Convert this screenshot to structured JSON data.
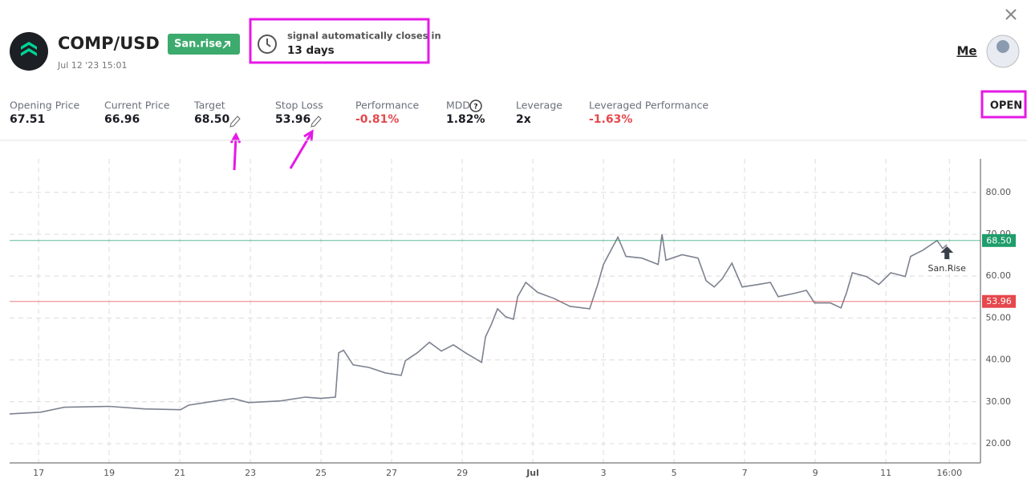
{
  "header": {
    "symbol": "COMP/USD",
    "badge": "San.rise",
    "date": "Jul 12 '23 15:01",
    "signal_label": "signal automatically closes in",
    "signal_value": "13 days",
    "user": "Me"
  },
  "stats": [
    {
      "label": "Opening Price",
      "value": "67.51"
    },
    {
      "label": "Current Price",
      "value": "66.96"
    },
    {
      "label": "Target",
      "value": "68.50"
    },
    {
      "label": "Stop Loss",
      "value": "53.96"
    },
    {
      "label": "Performance",
      "value": "-0.81%"
    },
    {
      "label": "MDD",
      "value": "1.82%"
    },
    {
      "label": "Leverage",
      "value": "2x"
    },
    {
      "label": "Leveraged Performance",
      "value": "-1.63%"
    }
  ],
  "status": "OPEN",
  "chart_data": {
    "type": "line",
    "color": "#7d8290",
    "grid": true,
    "x": [
      16.18,
      17.05,
      17.73,
      19.0,
      20.0,
      21.02,
      21.25,
      22.5,
      22.95,
      23.86,
      24.55,
      25.0,
      25.41,
      25.5,
      25.64,
      25.91,
      26.36,
      26.82,
      27.27,
      27.39,
      27.73,
      28.07,
      28.41,
      28.75,
      29.09,
      29.55,
      29.66,
      29.82,
      30.0,
      30.23,
      30.45,
      30.57,
      30.8,
      31.14,
      31.59,
      32.05,
      32.61,
      32.84,
      33.0,
      33.41,
      33.64,
      34.09,
      34.55,
      34.66,
      34.77,
      35.23,
      35.68,
      35.91,
      36.14,
      36.36,
      36.64,
      36.93,
      37.39,
      37.73,
      37.95,
      38.41,
      38.75,
      38.98,
      39.43,
      39.73,
      39.89,
      40.05,
      40.45,
      40.8,
      41.14,
      41.55,
      41.7,
      42.05,
      42.45,
      42.61,
      42.73
    ],
    "values": [
      27.1,
      27.5,
      28.7,
      28.9,
      28.3,
      28.1,
      29.2,
      30.8,
      29.8,
      30.2,
      31.1,
      30.8,
      31.1,
      41.7,
      42.3,
      38.8,
      38.2,
      36.9,
      36.3,
      39.8,
      41.7,
      44.2,
      42.1,
      43.6,
      41.7,
      39.4,
      45.5,
      48.4,
      52.2,
      50.3,
      49.7,
      55.1,
      58.5,
      56.1,
      54.7,
      52.8,
      52.2,
      58.0,
      62.8,
      69.3,
      64.7,
      64.3,
      62.8,
      70.0,
      63.8,
      65.1,
      64.3,
      58.9,
      57.4,
      59.3,
      63.1,
      57.4,
      58.0,
      58.5,
      55.1,
      55.9,
      56.6,
      53.6,
      53.6,
      52.4,
      56.1,
      60.8,
      59.9,
      58.0,
      60.8,
      59.9,
      64.7,
      66.2,
      68.5,
      66.6,
      67.5
    ],
    "xlim": [
      16.18,
      43.68
    ],
    "xticks": [
      17,
      19,
      21,
      23,
      25,
      27,
      29,
      {
        "value": 31,
        "label": "Jul"
      },
      {
        "value": 33,
        "label": "3"
      },
      {
        "value": 35,
        "label": "5"
      },
      {
        "value": 37,
        "label": "7"
      },
      {
        "value": 39,
        "label": "9"
      },
      {
        "value": 41,
        "label": "11"
      },
      {
        "value": 42.8,
        "label": "16:00"
      }
    ],
    "ylim": [
      15.4,
      88.0
    ],
    "yticks": [
      {
        "value": 20,
        "label": "20.00"
      },
      {
        "value": 30,
        "label": "30.00"
      },
      {
        "value": 40,
        "label": "40.00"
      },
      {
        "value": 50,
        "label": "50.00"
      },
      {
        "value": 60,
        "label": "60.00"
      },
      {
        "value": 70,
        "label": "70.00"
      },
      {
        "value": 80,
        "label": "80.00"
      }
    ],
    "reference_lines": [
      {
        "value": 68.5,
        "label": "68.50",
        "color": "#1f9d6b"
      },
      {
        "value": 53.96,
        "label": "53.96",
        "color": "#e5484d"
      }
    ],
    "annotation": {
      "x": 42.73,
      "y": 67.5,
      "text": "San.Rise"
    }
  }
}
